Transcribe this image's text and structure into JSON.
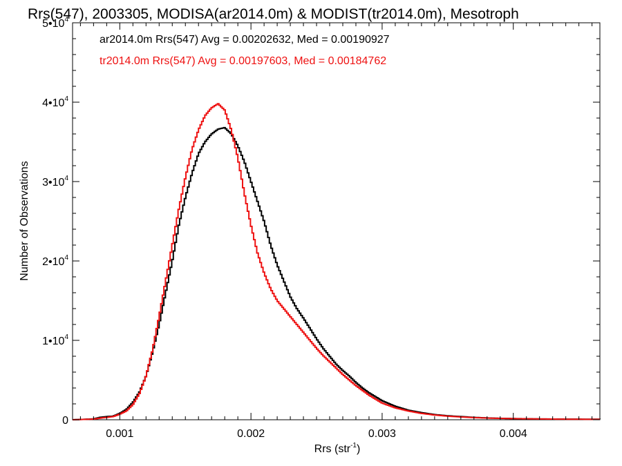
{
  "chart_data": {
    "type": "histogram-step",
    "title": "Rrs(547), 2003305, MODISA(ar2014.0m) & MODIST(tr2014.0m), Mesotroph",
    "xlabel": "Rrs (str",
    "xlabel_sup": "-1",
    "xlabel_close": ")",
    "ylabel": "Number of Observations",
    "xlim": [
      0.00064,
      0.00466
    ],
    "ylim": [
      0,
      50000
    ],
    "xticks": [
      {
        "value": 0.001,
        "label": "0.001"
      },
      {
        "value": 0.002,
        "label": "0.002"
      },
      {
        "value": 0.003,
        "label": "0.003"
      },
      {
        "value": 0.004,
        "label": "0.004"
      }
    ],
    "yticks": [
      {
        "value": 0,
        "label": "0",
        "exp": ""
      },
      {
        "value": 10000,
        "label": "1•10",
        "exp": "4"
      },
      {
        "value": 20000,
        "label": "2•10",
        "exp": "4"
      },
      {
        "value": 30000,
        "label": "3•10",
        "exp": "4"
      },
      {
        "value": 40000,
        "label": "4•10",
        "exp": "4"
      },
      {
        "value": 50000,
        "label": "5•10",
        "exp": "4"
      }
    ],
    "grid": false,
    "legend_position": "top-left",
    "series": [
      {
        "legend": "ar2014.0m Rrs(547) Avg = 0.00202632, Med = 0.00190927",
        "color": "#000000",
        "points": [
          [
            0.00064,
            0
          ],
          [
            0.0008,
            100
          ],
          [
            0.00085,
            300
          ],
          [
            0.0009,
            400
          ],
          [
            0.00095,
            450
          ],
          [
            0.001,
            800
          ],
          [
            0.00105,
            1300
          ],
          [
            0.0011,
            2200
          ],
          [
            0.00115,
            3500
          ],
          [
            0.0012,
            5500
          ],
          [
            0.00125,
            8500
          ],
          [
            0.0013,
            12000
          ],
          [
            0.00135,
            16000
          ],
          [
            0.0014,
            20000
          ],
          [
            0.00145,
            24500
          ],
          [
            0.0015,
            28000
          ],
          [
            0.00155,
            31000
          ],
          [
            0.0016,
            33500
          ],
          [
            0.00165,
            35000
          ],
          [
            0.0017,
            36000
          ],
          [
            0.00175,
            36600
          ],
          [
            0.0018,
            36800
          ],
          [
            0.00185,
            36000
          ],
          [
            0.0019,
            34500
          ],
          [
            0.00195,
            32500
          ],
          [
            0.002,
            30000
          ],
          [
            0.00205,
            27500
          ],
          [
            0.0021,
            25000
          ],
          [
            0.00215,
            22000
          ],
          [
            0.0022,
            19500
          ],
          [
            0.00225,
            17500
          ],
          [
            0.0023,
            15500
          ],
          [
            0.00235,
            14000
          ],
          [
            0.0024,
            12800
          ],
          [
            0.00245,
            11500
          ],
          [
            0.0025,
            10200
          ],
          [
            0.00255,
            9000
          ],
          [
            0.0026,
            8000
          ],
          [
            0.00265,
            7000
          ],
          [
            0.0027,
            6200
          ],
          [
            0.00275,
            5500
          ],
          [
            0.0028,
            4700
          ],
          [
            0.00285,
            4000
          ],
          [
            0.0029,
            3400
          ],
          [
            0.00295,
            2900
          ],
          [
            0.003,
            2400
          ],
          [
            0.0031,
            1700
          ],
          [
            0.0032,
            1200
          ],
          [
            0.0033,
            900
          ],
          [
            0.0034,
            650
          ],
          [
            0.0035,
            500
          ],
          [
            0.0036,
            400
          ],
          [
            0.0037,
            300
          ],
          [
            0.0038,
            230
          ],
          [
            0.0039,
            180
          ],
          [
            0.004,
            150
          ],
          [
            0.0042,
            100
          ],
          [
            0.0044,
            80
          ],
          [
            0.00466,
            60
          ]
        ]
      },
      {
        "legend": "tr2014.0m Rrs(547) Avg = 0.00197603, Med = 0.00184762",
        "color": "#ee1111",
        "points": [
          [
            0.00064,
            0
          ],
          [
            0.0008,
            80
          ],
          [
            0.00085,
            200
          ],
          [
            0.0009,
            300
          ],
          [
            0.00095,
            400
          ],
          [
            0.001,
            700
          ],
          [
            0.00105,
            1100
          ],
          [
            0.0011,
            1900
          ],
          [
            0.00115,
            3300
          ],
          [
            0.0012,
            5500
          ],
          [
            0.00125,
            8800
          ],
          [
            0.0013,
            13000
          ],
          [
            0.00135,
            17500
          ],
          [
            0.0014,
            22000
          ],
          [
            0.00145,
            26500
          ],
          [
            0.0015,
            30500
          ],
          [
            0.00155,
            34000
          ],
          [
            0.0016,
            36500
          ],
          [
            0.00165,
            38300
          ],
          [
            0.0017,
            39300
          ],
          [
            0.00175,
            39800
          ],
          [
            0.0018,
            39000
          ],
          [
            0.00185,
            36500
          ],
          [
            0.0019,
            33000
          ],
          [
            0.00195,
            28500
          ],
          [
            0.002,
            24500
          ],
          [
            0.00205,
            21000
          ],
          [
            0.0021,
            18500
          ],
          [
            0.00215,
            16500
          ],
          [
            0.0022,
            15000
          ],
          [
            0.00225,
            14000
          ],
          [
            0.0023,
            13000
          ],
          [
            0.00235,
            12000
          ],
          [
            0.0024,
            11000
          ],
          [
            0.00245,
            10000
          ],
          [
            0.0025,
            9000
          ],
          [
            0.00255,
            8100
          ],
          [
            0.0026,
            7300
          ],
          [
            0.00265,
            6500
          ],
          [
            0.0027,
            5700
          ],
          [
            0.00275,
            5000
          ],
          [
            0.0028,
            4300
          ],
          [
            0.00285,
            3700
          ],
          [
            0.0029,
            3100
          ],
          [
            0.00295,
            2600
          ],
          [
            0.003,
            2100
          ],
          [
            0.0031,
            1500
          ],
          [
            0.0032,
            1100
          ],
          [
            0.0033,
            800
          ],
          [
            0.0034,
            600
          ],
          [
            0.0035,
            450
          ],
          [
            0.0036,
            350
          ],
          [
            0.0037,
            270
          ],
          [
            0.0038,
            210
          ],
          [
            0.0039,
            170
          ],
          [
            0.004,
            140
          ],
          [
            0.0042,
            100
          ],
          [
            0.0044,
            70
          ],
          [
            0.00466,
            50
          ]
        ]
      }
    ]
  }
}
